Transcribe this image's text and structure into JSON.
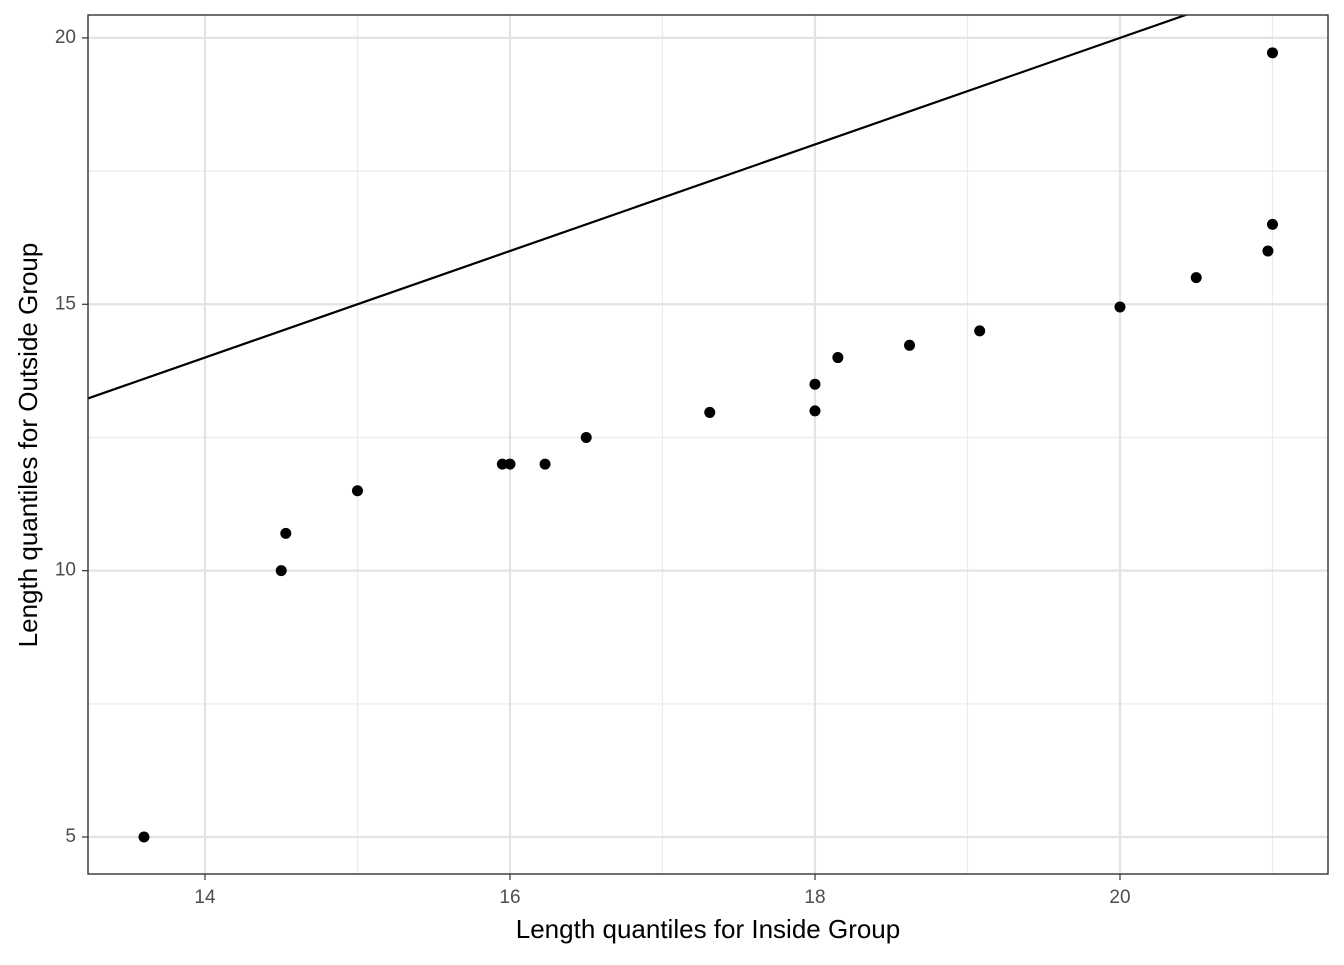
{
  "chart_data": {
    "type": "scatter",
    "x_label": "Length quantiles for Inside Group",
    "y_label": "Length quantiles for Outside Group",
    "x": [
      13.6,
      14.5,
      14.53,
      15.0,
      15.95,
      16.0,
      16.23,
      16.5,
      17.31,
      18.0,
      18.0,
      18.15,
      18.62,
      19.08,
      20.0,
      20.5,
      20.97,
      21.0,
      21.0
    ],
    "values": [
      5,
      10,
      10.7,
      11.5,
      12,
      12,
      12,
      12.5,
      12.97,
      13.0,
      13.5,
      14.0,
      14.23,
      14.5,
      14.95,
      15.5,
      16.0,
      16.5,
      19.72
    ],
    "color": "#000000",
    "xlim": [
      13.233,
      21.364
    ],
    "ylim": [
      4.306,
      20.43
    ],
    "xticks": [
      14,
      16,
      18,
      20
    ],
    "yticks": [
      5,
      10,
      15,
      20
    ],
    "x_minor_ticks": [
      15,
      17,
      19,
      21
    ],
    "y_minor_ticks": [
      7.5,
      12.5,
      17.5
    ],
    "reference_line": {
      "slope": 1,
      "intercept": 0
    },
    "grid": true
  }
}
